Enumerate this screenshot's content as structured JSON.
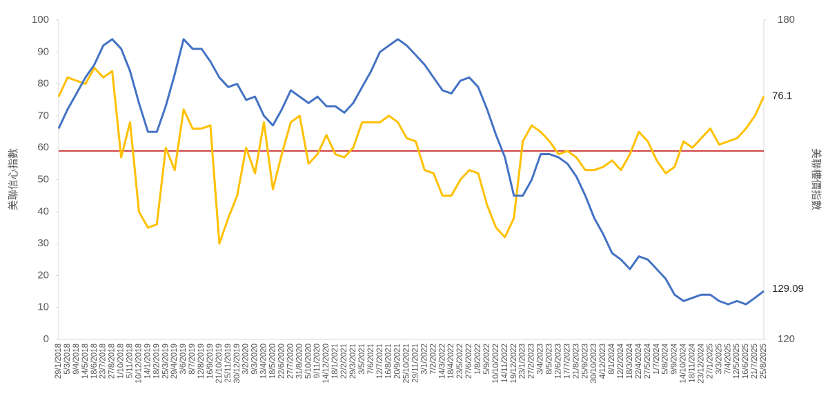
{
  "chart_data": {
    "type": "line",
    "y_label": "美聯信心指數",
    "y2_label": "美聯樓價指數",
    "categories": [
      "29/1/2018",
      "5/3/2018",
      "9/4/2018",
      "14/5/2018",
      "18/6/2018",
      "23/7/2018",
      "27/8/2018",
      "1/10/2018",
      "5/11/2018",
      "10/12/2018",
      "14/1/2019",
      "18/2/2019",
      "25/3/2019",
      "29/4/2019",
      "3/6/2019",
      "8/7/2019",
      "12/8/2019",
      "16/9/2019",
      "21/10/2019",
      "25/11/2019",
      "30/12/2019",
      "3/2/2020",
      "9/3/2020",
      "13/4/2020",
      "18/5/2020",
      "22/6/2020",
      "27/7/2020",
      "31/8/2020",
      "5/10/2020",
      "9/11/2020",
      "14/12/2020",
      "18/1/2021",
      "22/2/2021",
      "29/3/2021",
      "3/5/2021",
      "7/6/2021",
      "12/7/2021",
      "16/8/2021",
      "20/9/2021",
      "25/10/2021",
      "29/11/2021",
      "3/1/2022",
      "7/2/2022",
      "14/3/2022",
      "18/4/2022",
      "23/5/2022",
      "27/6/2022",
      "1/8/2022",
      "5/9/2022",
      "10/10/2022",
      "14/11/2022",
      "19/12/2022",
      "23/1/2023",
      "27/2/2023",
      "3/4/2023",
      "8/5/2023",
      "12/6/2023",
      "17/7/2023",
      "21/8/2023",
      "25/9/2023",
      "30/10/2023",
      "4/12/2023",
      "8/1/2024",
      "12/2/2024",
      "18/3/2024",
      "22/4/2024",
      "27/5/2024",
      "1/7/2024",
      "5/8/2024",
      "9/9/2024",
      "14/10/2024",
      "18/11/2024",
      "23/12/2024",
      "27/1/2025",
      "3/3/2025",
      "7/4/2025",
      "12/5/2025",
      "16/6/2025",
      "21/7/2025",
      "25/8/2025"
    ],
    "series": [
      {
        "color": "#ffc000",
        "axis": "y",
        "values": [
          76,
          82,
          81,
          80,
          85,
          82,
          84,
          57,
          68,
          40,
          35,
          36,
          60,
          53,
          72,
          66,
          66,
          67,
          30,
          38,
          45,
          60,
          52,
          68,
          47,
          58,
          68,
          70,
          55,
          58,
          64,
          58,
          57,
          60,
          68,
          68,
          68,
          70,
          68,
          63,
          62,
          53,
          52,
          45,
          45,
          50,
          53,
          52,
          42,
          35,
          32,
          38,
          62,
          67,
          65,
          62,
          58,
          59,
          57,
          53,
          53,
          54,
          56,
          53,
          58,
          65,
          62,
          56,
          52,
          54,
          62,
          60,
          63,
          66,
          61,
          62,
          63,
          66,
          70,
          76.1
        ]
      },
      {
        "color": "#4472c4",
        "axis": "y2",
        "values": [
          159.6,
          163.2,
          166.2,
          169.2,
          171.6,
          175.2,
          176.4,
          174.6,
          170.4,
          164.4,
          159,
          159,
          163.8,
          169.8,
          176.4,
          174.6,
          174.6,
          172.2,
          169.2,
          167.4,
          168,
          165,
          165.6,
          162,
          160.2,
          163.2,
          166.8,
          165.6,
          164.4,
          165.6,
          163.8,
          163.8,
          162.6,
          164.4,
          167.4,
          170.4,
          174,
          175.2,
          176.4,
          175.2,
          173.4,
          171.6,
          169.2,
          166.8,
          166.2,
          168.6,
          169.2,
          167.4,
          163.2,
          158.4,
          154.2,
          147,
          147,
          150,
          154.8,
          154.8,
          154.2,
          153,
          150.6,
          147,
          142.8,
          139.8,
          136.2,
          135,
          133.2,
          135.6,
          135,
          133.2,
          131.4,
          128.4,
          127.2,
          127.8,
          128.4,
          128.4,
          127.2,
          126.6,
          127.2,
          126.6,
          127.8,
          129.09
        ]
      }
    ],
    "ylim": [
      0,
      100
    ],
    "yticks": [
      0,
      10,
      20,
      30,
      40,
      50,
      60,
      70,
      80,
      90,
      100
    ],
    "y2lim": [
      120,
      180
    ],
    "y2ticks": [
      120,
      180
    ],
    "reference_line": {
      "value": 59,
      "color": "#c00000"
    },
    "grid": false
  }
}
